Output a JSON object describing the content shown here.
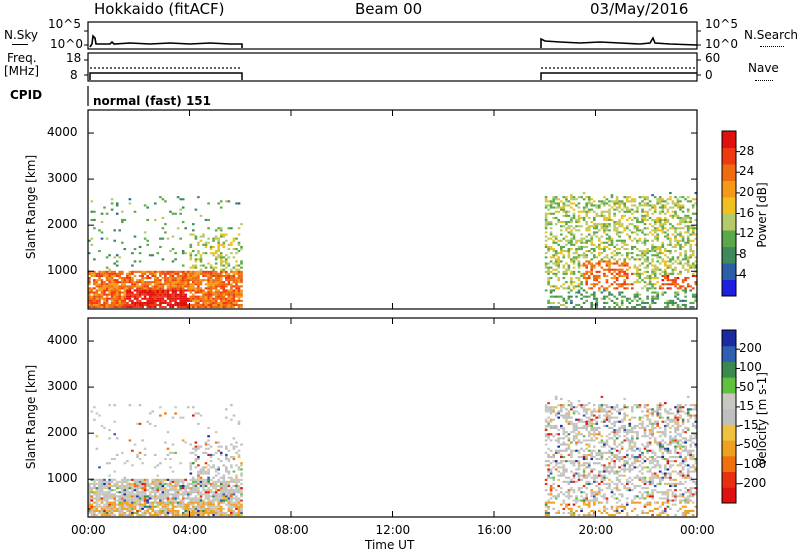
{
  "header": {
    "station": "Hokkaido (fitACF)",
    "beam": "Beam 00",
    "date": "03/May/2016"
  },
  "top_panels": {
    "nsky_label": "N.Sky",
    "nsky_ticks": [
      "10^5",
      "10^0"
    ],
    "nsearch_label": "N.Search",
    "nsearch_ticks": [
      "10^5",
      "10^0"
    ],
    "freq_label": "Freq.",
    "freq_unit": "[MHz]",
    "freq_ticks": [
      "18",
      "8"
    ],
    "nave_label": "Nave",
    "nave_ticks": [
      "60",
      "0"
    ],
    "cpid_label": "CPID",
    "cpid_text": "normal (fast) 151"
  },
  "colors": {
    "power_scale": [
      "#1f1fe0",
      "#2a5fa8",
      "#3f8a5a",
      "#5aa84a",
      "#b6c96a",
      "#f0c020",
      "#f49a18",
      "#f06a10",
      "#ee3a10",
      "#e01010"
    ],
    "velocity_scale": [
      "#1a2aa0",
      "#2f5fb0",
      "#3a8a50",
      "#60c040",
      "#c8c8c0",
      "#bfbfbf",
      "#f0c040",
      "#f0a020",
      "#f07010",
      "#e83010",
      "#e01010"
    ]
  },
  "chart_data": [
    {
      "type": "heatmap",
      "panel": "power",
      "xlabel": "",
      "ylabel": "Slant Range [km]",
      "y_ticks": [
        1000,
        2000,
        3000,
        4000
      ],
      "ylim": [
        180,
        4500
      ],
      "x_ticks": [
        "00:00",
        "04:00",
        "08:00",
        "12:00",
        "16:00",
        "20:00",
        "00:00"
      ],
      "xlim_hours": [
        0,
        24
      ],
      "colorbar_label": "Power [dB]",
      "colorbar_ticks": [
        28,
        24,
        20,
        16,
        12,
        8,
        4
      ],
      "colorbar_range": [
        0,
        32
      ],
      "data_intervals_hours": [
        [
          0,
          6
        ],
        [
          18,
          24
        ]
      ],
      "regions": [
        {
          "t": [
            0.0,
            6.0
          ],
          "r": [
            200,
            1000
          ],
          "level": 24
        },
        {
          "t": [
            1.5,
            4.0
          ],
          "r": [
            200,
            600
          ],
          "level": 30
        },
        {
          "t": [
            4.0,
            6.0
          ],
          "r": [
            900,
            1800
          ],
          "level": 14
        },
        {
          "t": [
            18.0,
            24.0
          ],
          "r": [
            600,
            2600
          ],
          "level": 14
        },
        {
          "t": [
            19.5,
            21.5
          ],
          "r": [
            600,
            1200
          ],
          "level": 24
        },
        {
          "t": [
            22.5,
            24.0
          ],
          "r": [
            600,
            900
          ],
          "level": 26
        }
      ]
    },
    {
      "type": "heatmap",
      "panel": "velocity",
      "xlabel": "Time UT",
      "ylabel": "Slant Range [km]",
      "y_ticks": [
        1000,
        2000,
        3000,
        4000
      ],
      "ylim": [
        180,
        4500
      ],
      "x_ticks": [
        "00:00",
        "04:00",
        "08:00",
        "12:00",
        "16:00",
        "20:00",
        "00:00"
      ],
      "xlim_hours": [
        0,
        24
      ],
      "colorbar_label": "Velocity [m s-1]",
      "colorbar_ticks": [
        "200",
        "100",
        "50",
        "15",
        "-15",
        "-50",
        "-100",
        "-200"
      ],
      "colorbar_range": [
        -250,
        250
      ],
      "data_intervals_hours": [
        [
          0,
          6
        ],
        [
          18,
          24
        ]
      ]
    }
  ]
}
